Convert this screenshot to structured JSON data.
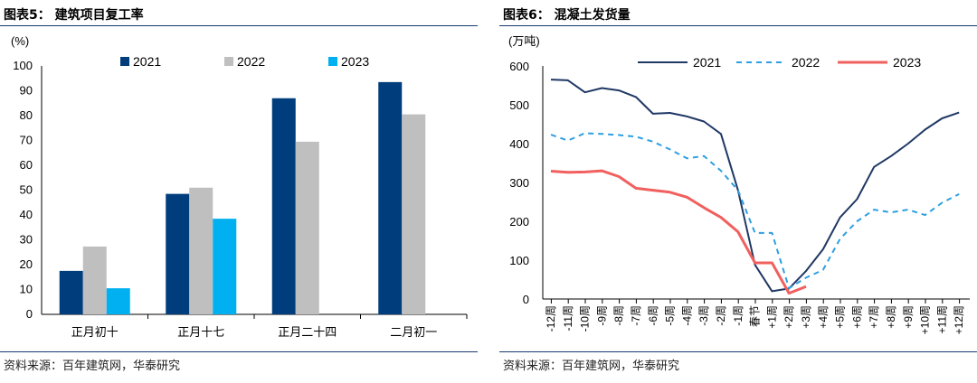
{
  "left": {
    "title": "图表5： 建筑项目复工率",
    "source": "资料来源：百年建筑网，华泰研究",
    "chart_data": {
      "type": "bar",
      "title": "建筑项目复工率",
      "ylabel": "(%)",
      "ylim": [
        0,
        100
      ],
      "yticks": [
        0,
        10,
        20,
        30,
        40,
        50,
        60,
        70,
        80,
        90,
        100
      ],
      "categories": [
        "正月初十",
        "正月十七",
        "正月二十四",
        "二月初一"
      ],
      "series": [
        {
          "name": "2021",
          "color": "#003d7c",
          "values": [
            17.5,
            48.5,
            87,
            93.5
          ]
        },
        {
          "name": "2022",
          "color": "#bfbfbf",
          "values": [
            27.3,
            51,
            69.5,
            80.5
          ]
        },
        {
          "name": "2023",
          "color": "#00b0f0",
          "values": [
            10.5,
            38.5,
            null,
            null
          ]
        }
      ],
      "legend": "top"
    }
  },
  "right": {
    "title": "图表6： 混凝土发货量",
    "source": "资料来源：百年建筑网，华泰研究",
    "chart_data": {
      "type": "line",
      "title": "混凝土发货量",
      "ylabel": "(万吨)",
      "ylim": [
        0,
        600
      ],
      "yticks": [
        0,
        100,
        200,
        300,
        400,
        500,
        600
      ],
      "categories": [
        "-12周",
        "-11周",
        "-10周",
        "-9周",
        "-8周",
        "-7周",
        "-6周",
        "-5周",
        "-4周",
        "-3周",
        "-2周",
        "-1周",
        "春节",
        "+1周",
        "+2周",
        "+3周",
        "+4周",
        "+5周",
        "+6周",
        "+7周",
        "+8周",
        "+9周",
        "+10周",
        "+11周",
        "+12周"
      ],
      "series": [
        {
          "name": "2021",
          "color": "#1f3864",
          "dash": "solid",
          "values": [
            565,
            563,
            532,
            543,
            537,
            520,
            477,
            479,
            470,
            457,
            425,
            280,
            88,
            20,
            27,
            72,
            128,
            210,
            257,
            340,
            368,
            400,
            436,
            465,
            480
          ]
        },
        {
          "name": "2022",
          "color": "#2e9fe0",
          "dash": "dashed",
          "values": [
            423,
            408,
            427,
            425,
            422,
            418,
            405,
            385,
            362,
            368,
            330,
            280,
            170,
            170,
            28,
            55,
            75,
            155,
            200,
            230,
            223,
            230,
            216,
            248,
            270
          ]
        },
        {
          "name": "2023",
          "color": "#f0605e",
          "dash": "solid",
          "values": [
            329,
            326,
            327,
            330,
            315,
            285,
            280,
            275,
            262,
            235,
            210,
            173,
            93,
            93,
            15,
            32,
            null,
            null,
            null,
            null,
            null,
            null,
            null,
            null,
            null
          ]
        }
      ],
      "legend": "top"
    }
  }
}
